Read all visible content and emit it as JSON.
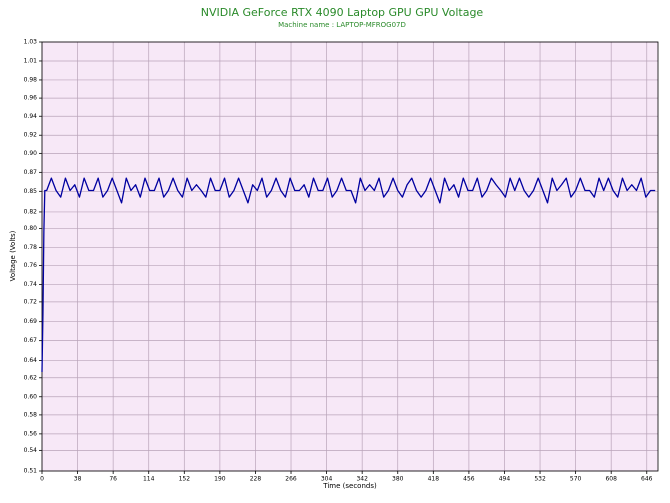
{
  "chart_data": {
    "type": "line",
    "title": "NVIDIA GeForce RTX 4090 Laptop GPU GPU Voltage",
    "subtitle": "Machine name : LAPTOP-MFROG07D",
    "x_label": "Time (seconds)",
    "y_label": "Voltage (Volts)",
    "x": [
      0,
      1,
      2,
      3,
      5,
      10,
      15,
      20,
      25,
      30,
      35,
      40,
      45,
      50,
      55,
      60,
      65,
      70,
      75,
      80,
      85,
      90,
      95,
      100,
      105,
      110,
      115,
      120,
      125,
      130,
      135,
      140,
      145,
      150,
      155,
      160,
      165,
      170,
      175,
      180,
      185,
      190,
      195,
      200,
      205,
      210,
      215,
      220,
      225,
      230,
      235,
      240,
      245,
      250,
      255,
      260,
      265,
      270,
      275,
      280,
      285,
      290,
      295,
      300,
      305,
      310,
      315,
      320,
      325,
      330,
      335,
      340,
      345,
      350,
      355,
      360,
      365,
      370,
      375,
      380,
      385,
      390,
      395,
      400,
      405,
      410,
      415,
      420,
      425,
      430,
      435,
      440,
      445,
      450,
      455,
      460,
      465,
      470,
      475,
      480,
      485,
      490,
      495,
      500,
      505,
      510,
      515,
      520,
      525,
      530,
      535,
      540,
      545,
      550,
      555,
      560,
      565,
      570,
      575,
      580,
      585,
      590,
      595,
      600,
      605,
      610,
      615,
      620,
      625,
      630,
      635,
      640,
      645,
      650,
      655
    ],
    "series": [
      {
        "name": "GPU Voltage",
        "color": "#0000a0",
        "values": [
          0.63,
          0.7,
          0.8,
          0.85,
          0.85,
          0.865,
          0.85,
          0.842,
          0.865,
          0.85,
          0.857,
          0.842,
          0.865,
          0.85,
          0.85,
          0.865,
          0.842,
          0.85,
          0.865,
          0.85,
          0.835,
          0.865,
          0.85,
          0.857,
          0.842,
          0.865,
          0.85,
          0.85,
          0.865,
          0.842,
          0.85,
          0.865,
          0.85,
          0.842,
          0.865,
          0.85,
          0.857,
          0.85,
          0.842,
          0.865,
          0.85,
          0.85,
          0.865,
          0.842,
          0.85,
          0.865,
          0.85,
          0.835,
          0.857,
          0.85,
          0.865,
          0.842,
          0.85,
          0.865,
          0.85,
          0.842,
          0.865,
          0.85,
          0.85,
          0.857,
          0.842,
          0.865,
          0.85,
          0.85,
          0.865,
          0.842,
          0.85,
          0.865,
          0.85,
          0.85,
          0.835,
          0.865,
          0.85,
          0.857,
          0.85,
          0.865,
          0.842,
          0.85,
          0.865,
          0.85,
          0.842,
          0.857,
          0.865,
          0.85,
          0.842,
          0.85,
          0.865,
          0.85,
          0.835,
          0.865,
          0.85,
          0.857,
          0.842,
          0.865,
          0.85,
          0.85,
          0.865,
          0.842,
          0.85,
          0.865,
          0.857,
          0.85,
          0.842,
          0.865,
          0.85,
          0.865,
          0.85,
          0.842,
          0.85,
          0.865,
          0.85,
          0.835,
          0.865,
          0.85,
          0.857,
          0.865,
          0.842,
          0.85,
          0.865,
          0.85,
          0.85,
          0.842,
          0.865,
          0.85,
          0.865,
          0.85,
          0.842,
          0.865,
          0.85,
          0.857,
          0.85,
          0.865,
          0.842,
          0.85,
          0.85
        ]
      }
    ],
    "xlim": [
      0,
      658
    ],
    "xticks": [
      0,
      38,
      76,
      114,
      152,
      190,
      228,
      266,
      304,
      342,
      380,
      418,
      456,
      494,
      532,
      570,
      608,
      646
    ],
    "ylim": [
      0.51,
      1.03
    ],
    "yticks": [
      0.51,
      {
        "value": 0.535,
        "label": "0.54"
      },
      {
        "value": 0.555,
        "label": "0.56"
      },
      {
        "value": 0.578,
        "label": "0.58"
      },
      {
        "value": 0.6,
        "label": "0.60"
      },
      {
        "value": 0.623,
        "label": "0.62"
      },
      {
        "value": 0.644,
        "label": "0.64"
      },
      {
        "value": 0.668,
        "label": "0.67"
      },
      {
        "value": 0.691,
        "label": "0.69"
      },
      {
        "value": 0.715,
        "label": "0.72"
      },
      {
        "value": 0.736,
        "label": "0.74"
      },
      {
        "value": 0.759,
        "label": "0.76"
      },
      {
        "value": 0.781,
        "label": "0.78"
      },
      {
        "value": 0.804,
        "label": "0.80"
      },
      {
        "value": 0.824,
        "label": "0.82"
      },
      {
        "value": 0.849,
        "label": "0.85"
      },
      {
        "value": 0.872,
        "label": "0.87"
      },
      {
        "value": 0.895,
        "label": "0.90"
      },
      {
        "value": 0.917,
        "label": "0.92"
      },
      {
        "value": 0.94,
        "label": "0.94"
      },
      {
        "value": 0.962,
        "label": "0.96"
      },
      {
        "value": 0.984,
        "label": "0.98"
      },
      {
        "value": 1.007,
        "label": "1.01"
      },
      1.03
    ],
    "grid": true,
    "plot_background": "#f7e8f7",
    "title_color": "#2a8a2a"
  }
}
